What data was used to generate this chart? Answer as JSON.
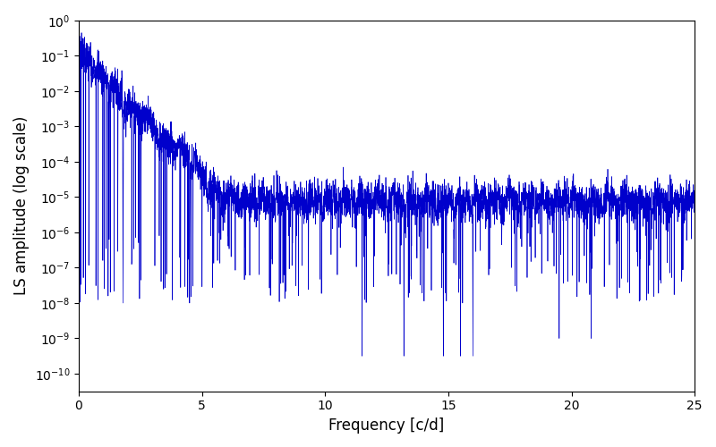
{
  "title": "",
  "xlabel": "Frequency [c/d]",
  "ylabel": "LS amplitude (log scale)",
  "line_color": "#0000cc",
  "xlim": [
    0,
    25
  ],
  "ylim_log": [
    -10.5,
    0
  ],
  "yscale": "log",
  "figsize": [
    8.0,
    5.0
  ],
  "dpi": 100,
  "seed": 7,
  "n_points": 5000,
  "freq_max": 25.0
}
